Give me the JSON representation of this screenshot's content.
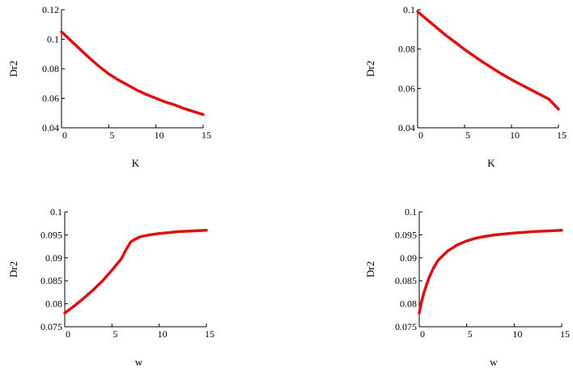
{
  "chart_data": [
    {
      "type": "line",
      "xlabel": "K",
      "ylabel": "Dr2",
      "xlim": [
        0,
        15
      ],
      "ylim": [
        0.04,
        0.12
      ],
      "xticks": [
        0,
        5,
        10,
        15
      ],
      "xtick_labels": [
        "0",
        "5",
        "10",
        "15"
      ],
      "yticks": [
        0.04,
        0.06,
        0.08,
        0.1,
        0.12
      ],
      "ytick_labels": [
        "0.04",
        "0.06",
        "0.08",
        "0.1",
        "0.12"
      ],
      "grid": false,
      "color": "#dd1111",
      "series": [
        {
          "x": [
            0,
            1,
            2,
            3,
            4,
            5,
            6,
            7,
            8,
            9,
            10,
            11,
            12,
            13,
            14,
            15
          ],
          "y": [
            0.105,
            0.099,
            0.093,
            0.087,
            0.0815,
            0.0765,
            0.0725,
            0.069,
            0.0655,
            0.0625,
            0.06,
            0.0575,
            0.0555,
            0.053,
            0.051,
            0.049
          ]
        }
      ]
    },
    {
      "type": "line",
      "xlabel": "K",
      "ylabel": "Dr2",
      "xlim": [
        0,
        15
      ],
      "ylim": [
        0.04,
        0.1
      ],
      "xticks": [
        0,
        5,
        10,
        15
      ],
      "xtick_labels": [
        "0",
        "5",
        "10",
        "15"
      ],
      "yticks": [
        0.04,
        0.06,
        0.08,
        0.1
      ],
      "ytick_labels": [
        "0.04",
        "0.06",
        "0.08",
        "0.1"
      ],
      "grid": false,
      "color": "#dd1111",
      "series": [
        {
          "x": [
            0,
            1,
            2,
            3,
            4,
            5,
            6,
            7,
            8,
            9,
            10,
            11,
            12,
            13,
            14,
            15
          ],
          "y": [
            0.099,
            0.095,
            0.091,
            0.087,
            0.0835,
            0.0798,
            0.0765,
            0.0732,
            0.0702,
            0.0672,
            0.0645,
            0.062,
            0.0595,
            0.057,
            0.0545,
            0.0495
          ]
        }
      ]
    },
    {
      "type": "line",
      "xlabel": "w",
      "ylabel": "Dr2",
      "xlim": [
        0,
        15
      ],
      "ylim": [
        0.075,
        0.1
      ],
      "xticks": [
        0,
        5,
        10,
        15
      ],
      "xtick_labels": [
        "0",
        "5",
        "10",
        "15"
      ],
      "yticks": [
        0.075,
        0.08,
        0.085,
        0.09,
        0.095,
        0.1
      ],
      "ytick_labels": [
        "0.075",
        "0.08",
        "0.085",
        "0.09",
        "0.095",
        "0.1"
      ],
      "grid": false,
      "color": "#dd1111",
      "series": [
        {
          "x": [
            0,
            1,
            2,
            3,
            4,
            5,
            6,
            6.5,
            7,
            7.5,
            8,
            9,
            10,
            11,
            12,
            13,
            14,
            15
          ],
          "y": [
            0.078,
            0.0795,
            0.0812,
            0.083,
            0.085,
            0.0873,
            0.0898,
            0.0918,
            0.0935,
            0.0941,
            0.0946,
            0.095,
            0.0953,
            0.0955,
            0.0957,
            0.0958,
            0.0959,
            0.096
          ]
        }
      ]
    },
    {
      "type": "line",
      "xlabel": "w",
      "ylabel": "Dr2",
      "xlim": [
        0,
        15
      ],
      "ylim": [
        0.075,
        0.1
      ],
      "xticks": [
        0,
        5,
        10,
        15
      ],
      "xtick_labels": [
        "0",
        "5",
        "10",
        "15"
      ],
      "yticks": [
        0.075,
        0.08,
        0.085,
        0.09,
        0.095,
        0.1
      ],
      "ytick_labels": [
        "0.075",
        "0.08",
        "0.085",
        "0.09",
        "0.095",
        "0.1"
      ],
      "grid": false,
      "color": "#dd1111",
      "series": [
        {
          "x": [
            0,
            0.25,
            0.5,
            1,
            1.5,
            2,
            3,
            4,
            5,
            6,
            7,
            8,
            10,
            12,
            15
          ],
          "y": [
            0.078,
            0.0805,
            0.0825,
            0.0855,
            0.0878,
            0.0895,
            0.0915,
            0.0928,
            0.0937,
            0.0943,
            0.0947,
            0.095,
            0.0954,
            0.0957,
            0.096
          ]
        }
      ]
    }
  ]
}
